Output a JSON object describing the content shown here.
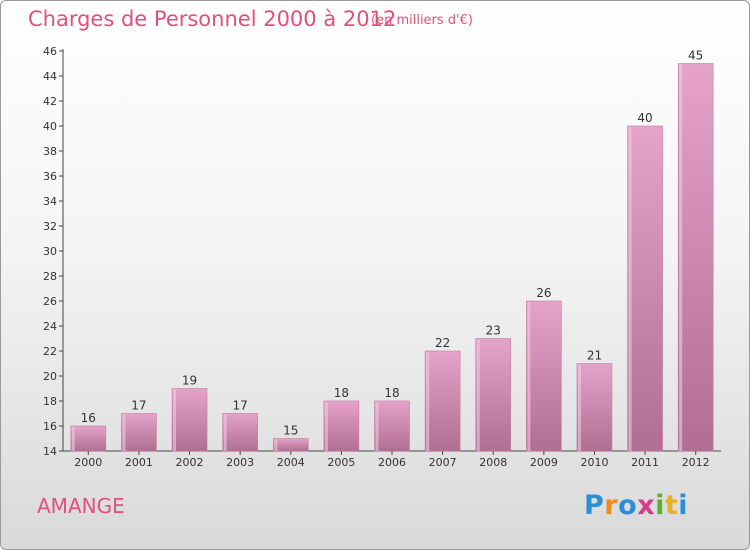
{
  "title": "Charges de Personnel 2000 à 2012",
  "subtitle": "(en milliers d'€)",
  "commune": "AMANGE",
  "brand": "Proxiti",
  "colors": {
    "bar_top": "#e6a3ca",
    "bar_bottom": "#b06e92",
    "title": "#e2507a",
    "axis": "#444444",
    "brand": [
      "#2a8fd6",
      "#f08a1c",
      "#2a8fd6",
      "#d63a8c",
      "#5ab02a",
      "#e8b021",
      "#2a8fd6"
    ]
  },
  "chart_data": {
    "type": "bar",
    "title": "Charges de Personnel 2000 à 2012",
    "subtitle": "(en milliers d'€)",
    "categories": [
      "2000",
      "2001",
      "2002",
      "2003",
      "2004",
      "2005",
      "2006",
      "2007",
      "2008",
      "2009",
      "2010",
      "2011",
      "2012"
    ],
    "values": [
      16,
      17,
      19,
      17,
      15,
      18,
      18,
      22,
      23,
      26,
      21,
      40,
      45
    ],
    "ylim": [
      14,
      46
    ],
    "yticks": [
      14,
      16,
      18,
      20,
      22,
      24,
      26,
      28,
      30,
      32,
      34,
      36,
      38,
      40,
      42,
      44,
      46
    ],
    "xlabel": "",
    "ylabel": "",
    "grid": false
  }
}
